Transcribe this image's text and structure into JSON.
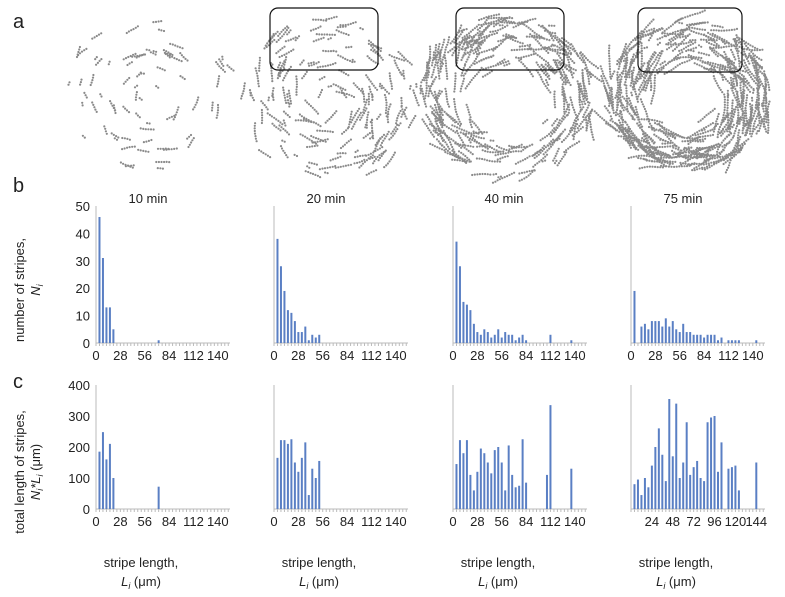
{
  "panels": {
    "a_label": "a",
    "b_label": "b",
    "c_label": "c"
  },
  "times": [
    "10 min",
    "20 min",
    "40 min",
    "75 min"
  ],
  "row_b": {
    "ylabel_line1": "number of stripes,",
    "ylabel_line2": "N",
    "ylabel_sub": "i",
    "ylim": [
      0,
      50
    ],
    "yticks": [
      "0",
      "10",
      "20",
      "30",
      "40",
      "50"
    ]
  },
  "row_c": {
    "ylabel_line1": "total length of stripes,",
    "ylabel_line2": "N",
    "ylabel_sub": "i",
    "ylabel_line2b": "*L",
    "ylabel_sub2": "i",
    "ylabel_unit": " (μm)",
    "ylim": [
      0,
      400
    ],
    "yticks": [
      "0",
      "100",
      "200",
      "300",
      "400"
    ]
  },
  "xlabel": {
    "line1": "stripe length,",
    "line2": "L",
    "sub": "i",
    "unit": " (μm)"
  },
  "xticks_b": [
    "0",
    "28",
    "56",
    "84",
    "112",
    "140"
  ],
  "xticks_c": [
    [
      "0",
      "28",
      "56",
      "84",
      "112",
      "140"
    ],
    [
      "0",
      "28",
      "56",
      "84",
      "112",
      "140"
    ],
    [
      "0",
      "28",
      "56",
      "84",
      "112",
      "140"
    ],
    [
      "24",
      "48",
      "72",
      "96",
      "120",
      "144"
    ]
  ],
  "colors": {
    "bar": "#5a7fc4",
    "axis": "#bbbbbb",
    "dots": "#8a8a8a"
  },
  "chart_data": [
    {
      "type": "bar",
      "row": "b",
      "title": "10 min",
      "xlim": [
        0,
        154
      ],
      "ylim": [
        0,
        50
      ],
      "x": [
        4,
        8,
        12,
        16,
        20,
        72
      ],
      "values": [
        46,
        31,
        13,
        13,
        5,
        1
      ]
    },
    {
      "type": "bar",
      "row": "b",
      "title": "20 min",
      "xlim": [
        0,
        154
      ],
      "ylim": [
        0,
        50
      ],
      "x": [
        4,
        8,
        12,
        16,
        20,
        24,
        28,
        32,
        36,
        40,
        44,
        48,
        52
      ],
      "values": [
        38,
        28,
        19,
        12,
        11,
        8,
        4,
        4,
        6,
        1,
        3,
        2,
        3
      ]
    },
    {
      "type": "bar",
      "row": "b",
      "title": "40 min",
      "xlim": [
        0,
        154
      ],
      "ylim": [
        0,
        50
      ],
      "x": [
        4,
        8,
        12,
        16,
        20,
        24,
        28,
        32,
        36,
        40,
        44,
        48,
        52,
        56,
        60,
        64,
        68,
        72,
        76,
        80,
        84,
        112,
        136
      ],
      "values": [
        37,
        28,
        15,
        14,
        12,
        7,
        4,
        3,
        5,
        4,
        2,
        3,
        5,
        2,
        4,
        3,
        3,
        1,
        2,
        3,
        1,
        3,
        1
      ]
    },
    {
      "type": "bar",
      "row": "b",
      "title": "75 min",
      "xlim": [
        0,
        154
      ],
      "ylim": [
        0,
        50
      ],
      "x": [
        4,
        12,
        16,
        20,
        24,
        28,
        32,
        36,
        40,
        44,
        48,
        52,
        56,
        60,
        64,
        68,
        72,
        76,
        80,
        84,
        88,
        92,
        96,
        100,
        104,
        112,
        116,
        120,
        124,
        144
      ],
      "values": [
        19,
        6,
        7,
        5,
        8,
        8,
        8,
        6,
        9,
        6,
        8,
        5,
        4,
        7,
        4,
        4,
        3,
        3,
        3,
        2,
        3,
        3,
        3,
        1,
        2,
        1,
        1,
        1,
        1,
        1
      ]
    },
    {
      "type": "bar",
      "row": "c",
      "title": "10 min",
      "xlim": [
        0,
        154
      ],
      "ylim": [
        0,
        400
      ],
      "x": [
        4,
        8,
        12,
        16,
        20,
        72
      ],
      "values": [
        185,
        248,
        160,
        210,
        100,
        72
      ]
    },
    {
      "type": "bar",
      "row": "c",
      "title": "20 min",
      "xlim": [
        0,
        154
      ],
      "ylim": [
        0,
        400
      ],
      "x": [
        4,
        8,
        12,
        16,
        20,
        24,
        28,
        32,
        36,
        40,
        44,
        48,
        52
      ],
      "values": [
        165,
        222,
        222,
        210,
        225,
        150,
        120,
        165,
        215,
        45,
        130,
        100,
        155
      ]
    },
    {
      "type": "bar",
      "row": "c",
      "title": "40 min",
      "xlim": [
        0,
        154
      ],
      "ylim": [
        0,
        400
      ],
      "x": [
        4,
        8,
        12,
        16,
        20,
        24,
        28,
        32,
        36,
        40,
        44,
        48,
        52,
        56,
        60,
        64,
        68,
        72,
        76,
        80,
        84,
        108,
        112,
        136
      ],
      "values": [
        145,
        222,
        180,
        222,
        110,
        60,
        120,
        195,
        180,
        150,
        115,
        190,
        200,
        150,
        60,
        205,
        110,
        70,
        75,
        225,
        85,
        110,
        335,
        130
      ]
    },
    {
      "type": "bar",
      "row": "c",
      "title": "75 min",
      "xlim": [
        0,
        154
      ],
      "ylim": [
        0,
        400
      ],
      "x": [
        4,
        8,
        12,
        16,
        20,
        24,
        28,
        32,
        36,
        40,
        44,
        48,
        52,
        56,
        60,
        64,
        68,
        72,
        76,
        80,
        84,
        88,
        92,
        96,
        100,
        104,
        112,
        116,
        120,
        124,
        144
      ],
      "values": [
        80,
        95,
        45,
        100,
        70,
        140,
        200,
        260,
        175,
        90,
        355,
        170,
        340,
        100,
        150,
        280,
        110,
        135,
        155,
        100,
        90,
        280,
        295,
        300,
        120,
        215,
        130,
        135,
        140,
        60,
        150
      ]
    }
  ]
}
